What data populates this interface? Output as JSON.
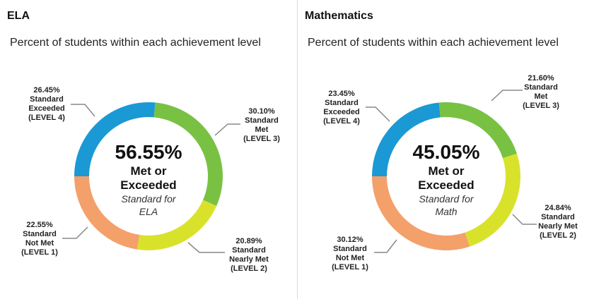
{
  "chart_data": [
    {
      "type": "pie",
      "title": "ELA",
      "subtitle": "Percent of students within each achievement level",
      "center": {
        "value": "56.55%",
        "line1": "Met or",
        "line2": "Exceeded",
        "line3": "Standard for",
        "line4": "ELA"
      },
      "slices": [
        {
          "name": "Standard Exceeded (LEVEL 4)",
          "value": 26.45,
          "label_pct": "26.45%",
          "label_lines": [
            "Standard",
            "Exceeded",
            "(LEVEL 4)"
          ],
          "color": "#1a99d4"
        },
        {
          "name": "Standard Met (LEVEL 3)",
          "value": 30.1,
          "label_pct": "30.10%",
          "label_lines": [
            "Standard",
            "Met",
            "(LEVEL 3)"
          ],
          "color": "#79c143"
        },
        {
          "name": "Standard Nearly Met (LEVEL 2)",
          "value": 20.89,
          "label_pct": "20.89%",
          "label_lines": [
            "Standard",
            "Nearly Met",
            "(LEVEL 2)"
          ],
          "color": "#d9e22b"
        },
        {
          "name": "Standard Not Met (LEVEL 1)",
          "value": 22.55,
          "label_pct": "22.55%",
          "label_lines": [
            "Standard",
            "Not Met",
            "(LEVEL 1)"
          ],
          "color": "#f4a06a"
        }
      ]
    },
    {
      "type": "pie",
      "title": "Mathematics",
      "subtitle": "Percent of students within each achievement level",
      "center": {
        "value": "45.05%",
        "line1": "Met or",
        "line2": "Exceeded",
        "line3": "Standard for",
        "line4": "Math"
      },
      "slices": [
        {
          "name": "Standard Exceeded (LEVEL 4)",
          "value": 23.45,
          "label_pct": "23.45%",
          "label_lines": [
            "Standard",
            "Exceeded",
            "(LEVEL 4)"
          ],
          "color": "#1a99d4"
        },
        {
          "name": "Standard Met (LEVEL 3)",
          "value": 21.6,
          "label_pct": "21.60%",
          "label_lines": [
            "Standard",
            "Met",
            "(LEVEL 3)"
          ],
          "color": "#79c143"
        },
        {
          "name": "Standard Nearly Met (LEVEL 2)",
          "value": 24.84,
          "label_pct": "24.84%",
          "label_lines": [
            "Standard",
            "Nearly Met",
            "(LEVEL 2)"
          ],
          "color": "#d9e22b"
        },
        {
          "name": "Standard Not Met (LEVEL 1)",
          "value": 30.12,
          "label_pct": "30.12%",
          "label_lines": [
            "Standard",
            "Not Met",
            "(LEVEL 1)"
          ],
          "color": "#f4a06a"
        }
      ]
    }
  ]
}
